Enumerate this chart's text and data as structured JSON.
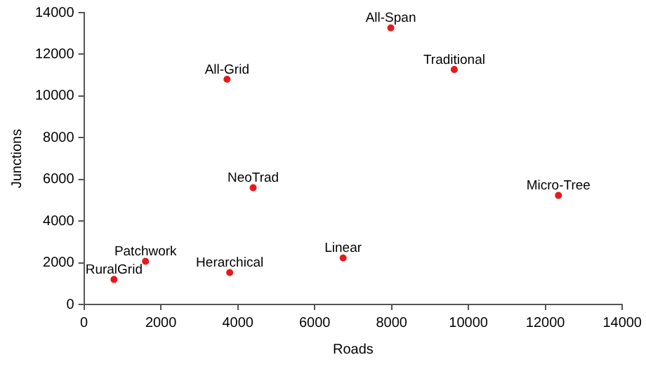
{
  "chart_data": {
    "type": "scatter",
    "xlabel": "Roads",
    "ylabel": "Junctions",
    "x": [
      780,
      1600,
      3790,
      3720,
      4400,
      6740,
      7980,
      9630,
      12340
    ],
    "values": [
      1200,
      2070,
      1530,
      10800,
      5600,
      2230,
      13270,
      11270,
      5230
    ],
    "color": "#e41a1c",
    "marker": "circle",
    "grid": false,
    "legend": false,
    "xlim": [
      0,
      14000
    ],
    "xticks": [
      0,
      2000,
      4000,
      6000,
      8000,
      10000,
      12000,
      14000
    ],
    "ylim": [
      0,
      14000
    ],
    "yticks": [
      0,
      2000,
      4000,
      6000,
      8000,
      10000,
      12000,
      14000
    ],
    "annotations": [
      {
        "text": "RuralGrid",
        "x": 780,
        "y": 1200
      },
      {
        "text": "Patchwork",
        "x": 1600,
        "y": 2070
      },
      {
        "text": "Herarchical",
        "x": 3790,
        "y": 1530
      },
      {
        "text": "All-Grid",
        "x": 3720,
        "y": 10800
      },
      {
        "text": "NeoTrad",
        "x": 4400,
        "y": 5600
      },
      {
        "text": "Linear",
        "x": 6740,
        "y": 2230
      },
      {
        "text": "All-Span",
        "x": 7980,
        "y": 13270
      },
      {
        "text": "Traditional",
        "x": 9630,
        "y": 11270
      },
      {
        "text": "Micro-Tree",
        "x": 12340,
        "y": 5230
      }
    ]
  }
}
